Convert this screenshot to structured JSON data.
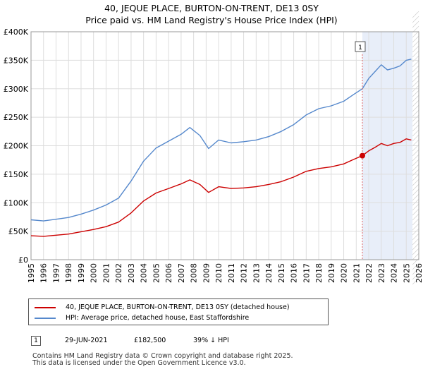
{
  "title": {
    "line1": "40, JEQUE PLACE, BURTON-ON-TRENT, DE13 0SY",
    "line2": "Price paid vs. HM Land Registry's House Price Index (HPI)"
  },
  "colors": {
    "price": "#cc0000",
    "hpi": "#5588cc",
    "shade": "#e8eef9",
    "grid": "#dddddd",
    "marker_line": "#e06666"
  },
  "chart_data": {
    "type": "line",
    "title": "Price paid vs. HM Land Registry's House Price Index (HPI)",
    "xlabel": "",
    "ylabel": "",
    "xlim": [
      1995,
      2026
    ],
    "ylim": [
      0,
      400000
    ],
    "yticks": [
      0,
      50000,
      100000,
      150000,
      200000,
      250000,
      300000,
      350000,
      400000
    ],
    "ytick_labels": [
      "£0",
      "£50K",
      "£100K",
      "£150K",
      "£200K",
      "£250K",
      "£300K",
      "£350K",
      "£400K"
    ],
    "xticks": [
      1995,
      1996,
      1997,
      1998,
      1999,
      2000,
      2001,
      2002,
      2003,
      2004,
      2005,
      2006,
      2007,
      2008,
      2009,
      2010,
      2011,
      2012,
      2013,
      2014,
      2015,
      2016,
      2017,
      2018,
      2019,
      2020,
      2021,
      2022,
      2023,
      2024,
      2025,
      2026
    ],
    "grid": true,
    "shaded_region": [
      2021.49,
      2025.5
    ],
    "series": [
      {
        "name": "40, JEQUE PLACE, BURTON-ON-TRENT, DE13 0SY (detached house)",
        "x": [
          1995.0,
          1996.0,
          1997.0,
          1998.0,
          1999.0,
          2000.0,
          2001.0,
          2002.0,
          2003.0,
          2004.0,
          2005.0,
          2006.0,
          2007.0,
          2007.7,
          2008.5,
          2009.2,
          2010.0,
          2011.0,
          2012.0,
          2013.0,
          2014.0,
          2015.0,
          2016.0,
          2017.0,
          2018.0,
          2019.0,
          2020.0,
          2020.8,
          2021.49,
          2022.0,
          2022.5,
          2023.0,
          2023.5,
          2024.0,
          2024.5,
          2025.0,
          2025.4
        ],
        "values": [
          42000,
          41000,
          43000,
          45000,
          49000,
          53000,
          58000,
          66000,
          82000,
          103000,
          117000,
          125000,
          133000,
          140000,
          132000,
          118000,
          128000,
          125000,
          126000,
          128000,
          132000,
          137000,
          145000,
          155000,
          160000,
          163000,
          168000,
          176000,
          182500,
          191000,
          197000,
          204000,
          200000,
          204000,
          206000,
          212000,
          210000
        ]
      },
      {
        "name": "HPI: Average price, detached house, East Staffordshire",
        "x": [
          1995.0,
          1996.0,
          1997.0,
          1998.0,
          1999.0,
          2000.0,
          2001.0,
          2002.0,
          2003.0,
          2004.0,
          2005.0,
          2006.0,
          2007.0,
          2007.7,
          2008.5,
          2009.2,
          2010.0,
          2011.0,
          2012.0,
          2013.0,
          2014.0,
          2015.0,
          2016.0,
          2017.0,
          2018.0,
          2019.0,
          2020.0,
          2020.8,
          2021.49,
          2022.0,
          2022.5,
          2023.0,
          2023.5,
          2024.0,
          2024.5,
          2025.0,
          2025.4
        ],
        "values": [
          70000,
          68000,
          71000,
          74000,
          80000,
          87000,
          96000,
          108000,
          138000,
          173000,
          196000,
          208000,
          220000,
          232000,
          218000,
          195000,
          210000,
          205000,
          207000,
          210000,
          216000,
          225000,
          237000,
          254000,
          265000,
          270000,
          278000,
          290000,
          300000,
          318000,
          330000,
          342000,
          333000,
          336000,
          340000,
          350000,
          352000
        ]
      }
    ],
    "annotations": [
      {
        "label": "1",
        "x": 2021.49,
        "value": 182500
      }
    ]
  },
  "legend": {
    "price_label": "40, JEQUE PLACE, BURTON-ON-TRENT, DE13 0SY (detached house)",
    "hpi_label": "HPI: Average price, detached house, East Staffordshire"
  },
  "transactions": [
    {
      "badge": "1",
      "date": "29-JUN-2021",
      "price": "£182,500",
      "hpi_diff": "39% ↓ HPI"
    }
  ],
  "footer": {
    "line1": "Contains HM Land Registry data © Crown copyright and database right 2025.",
    "line2": "This data is licensed under the Open Government Licence v3.0."
  }
}
